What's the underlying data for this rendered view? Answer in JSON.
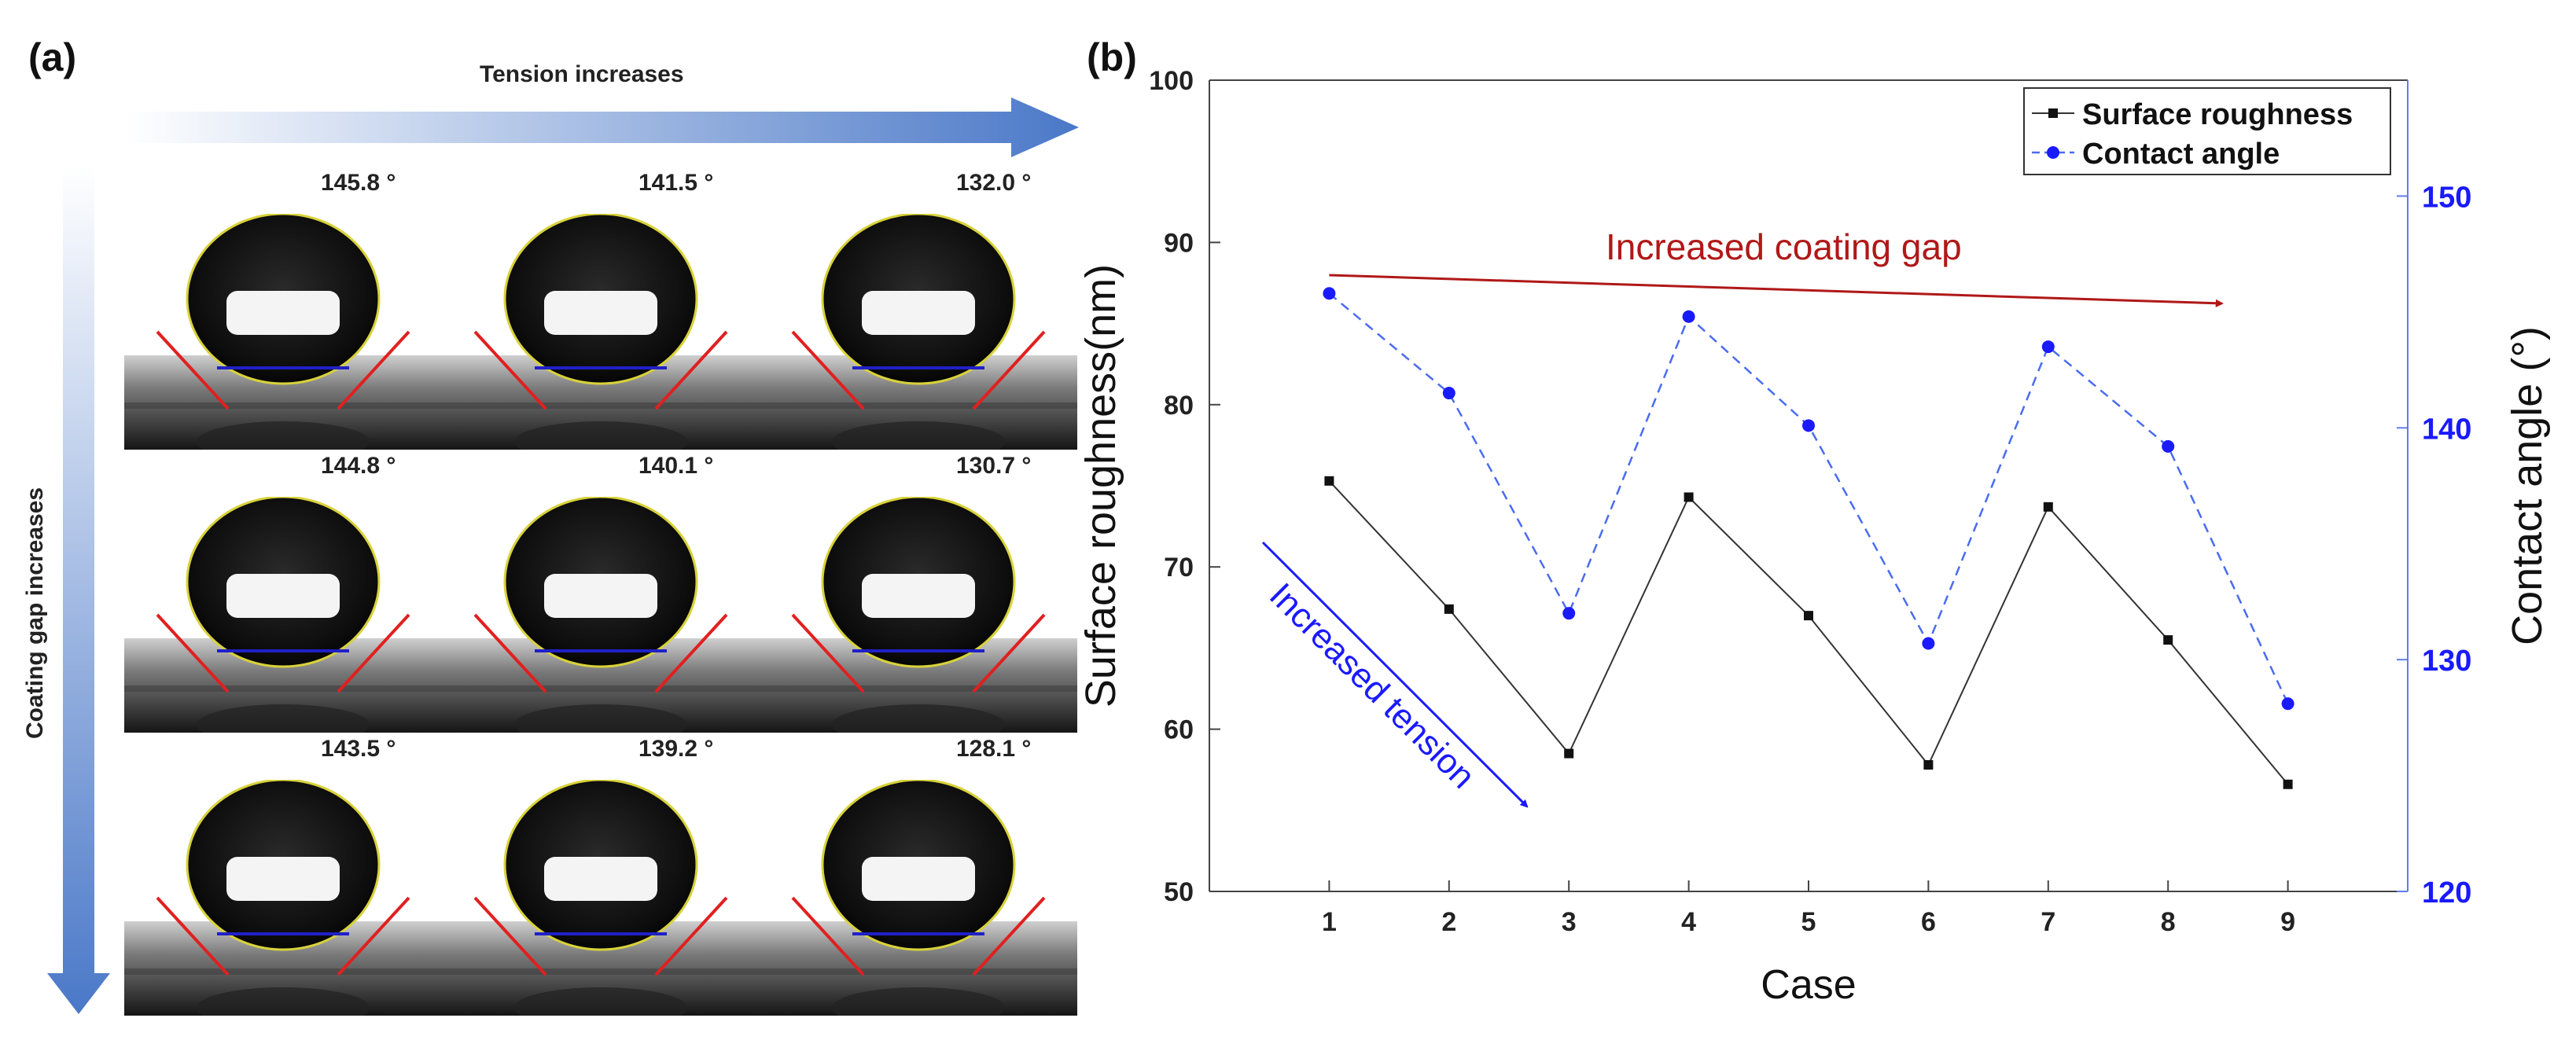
{
  "panel_a": {
    "label": "(a)",
    "tension_label": "Tension increases",
    "coating_gap_label": "Coating gap increases",
    "angles": [
      [
        "145.8 °",
        "141.5 °",
        "132.0 °"
      ],
      [
        "144.8 °",
        "140.1 °",
        "130.7 °"
      ],
      [
        "143.5 °",
        "139.2 °",
        "128.1 °"
      ]
    ]
  },
  "panel_b": {
    "label": "(b)"
  },
  "colors": {
    "roughness": "#333333",
    "contact": "#1a1aff",
    "gap_arrow": "#b01818",
    "tension_arrow": "#1a1aff",
    "gradient_arrow": "#4a78c8"
  },
  "chart_data": {
    "type": "line",
    "xlabel": "Case",
    "ylabel": "Surface roughness(nm)",
    "y2label": "Contact angle (°)",
    "x": [
      1,
      2,
      3,
      4,
      5,
      6,
      7,
      8,
      9
    ],
    "xticks": [
      "1",
      "2",
      "3",
      "4",
      "5",
      "6",
      "7",
      "8",
      "9"
    ],
    "xlim": [
      0,
      10
    ],
    "ylim": [
      50,
      100
    ],
    "yticks": [
      "50",
      "60",
      "70",
      "80",
      "90",
      "100"
    ],
    "y2lim": [
      120,
      155
    ],
    "y2ticks": [
      "120",
      "130",
      "140",
      "150"
    ],
    "series": [
      {
        "name": "Surface roughness",
        "axis": "left",
        "style": "solid",
        "marker": "square",
        "values": [
          75.3,
          67.4,
          58.5,
          74.3,
          67.0,
          57.8,
          73.7,
          65.5,
          56.6
        ]
      },
      {
        "name": "Contact angle",
        "axis": "right",
        "style": "dashed",
        "marker": "circle",
        "values": [
          145.8,
          141.5,
          132.0,
          144.8,
          140.1,
          130.7,
          143.5,
          139.2,
          128.1
        ]
      }
    ],
    "annotations": [
      {
        "text": "Increased coating gap"
      },
      {
        "text": "Increased tension"
      }
    ]
  }
}
